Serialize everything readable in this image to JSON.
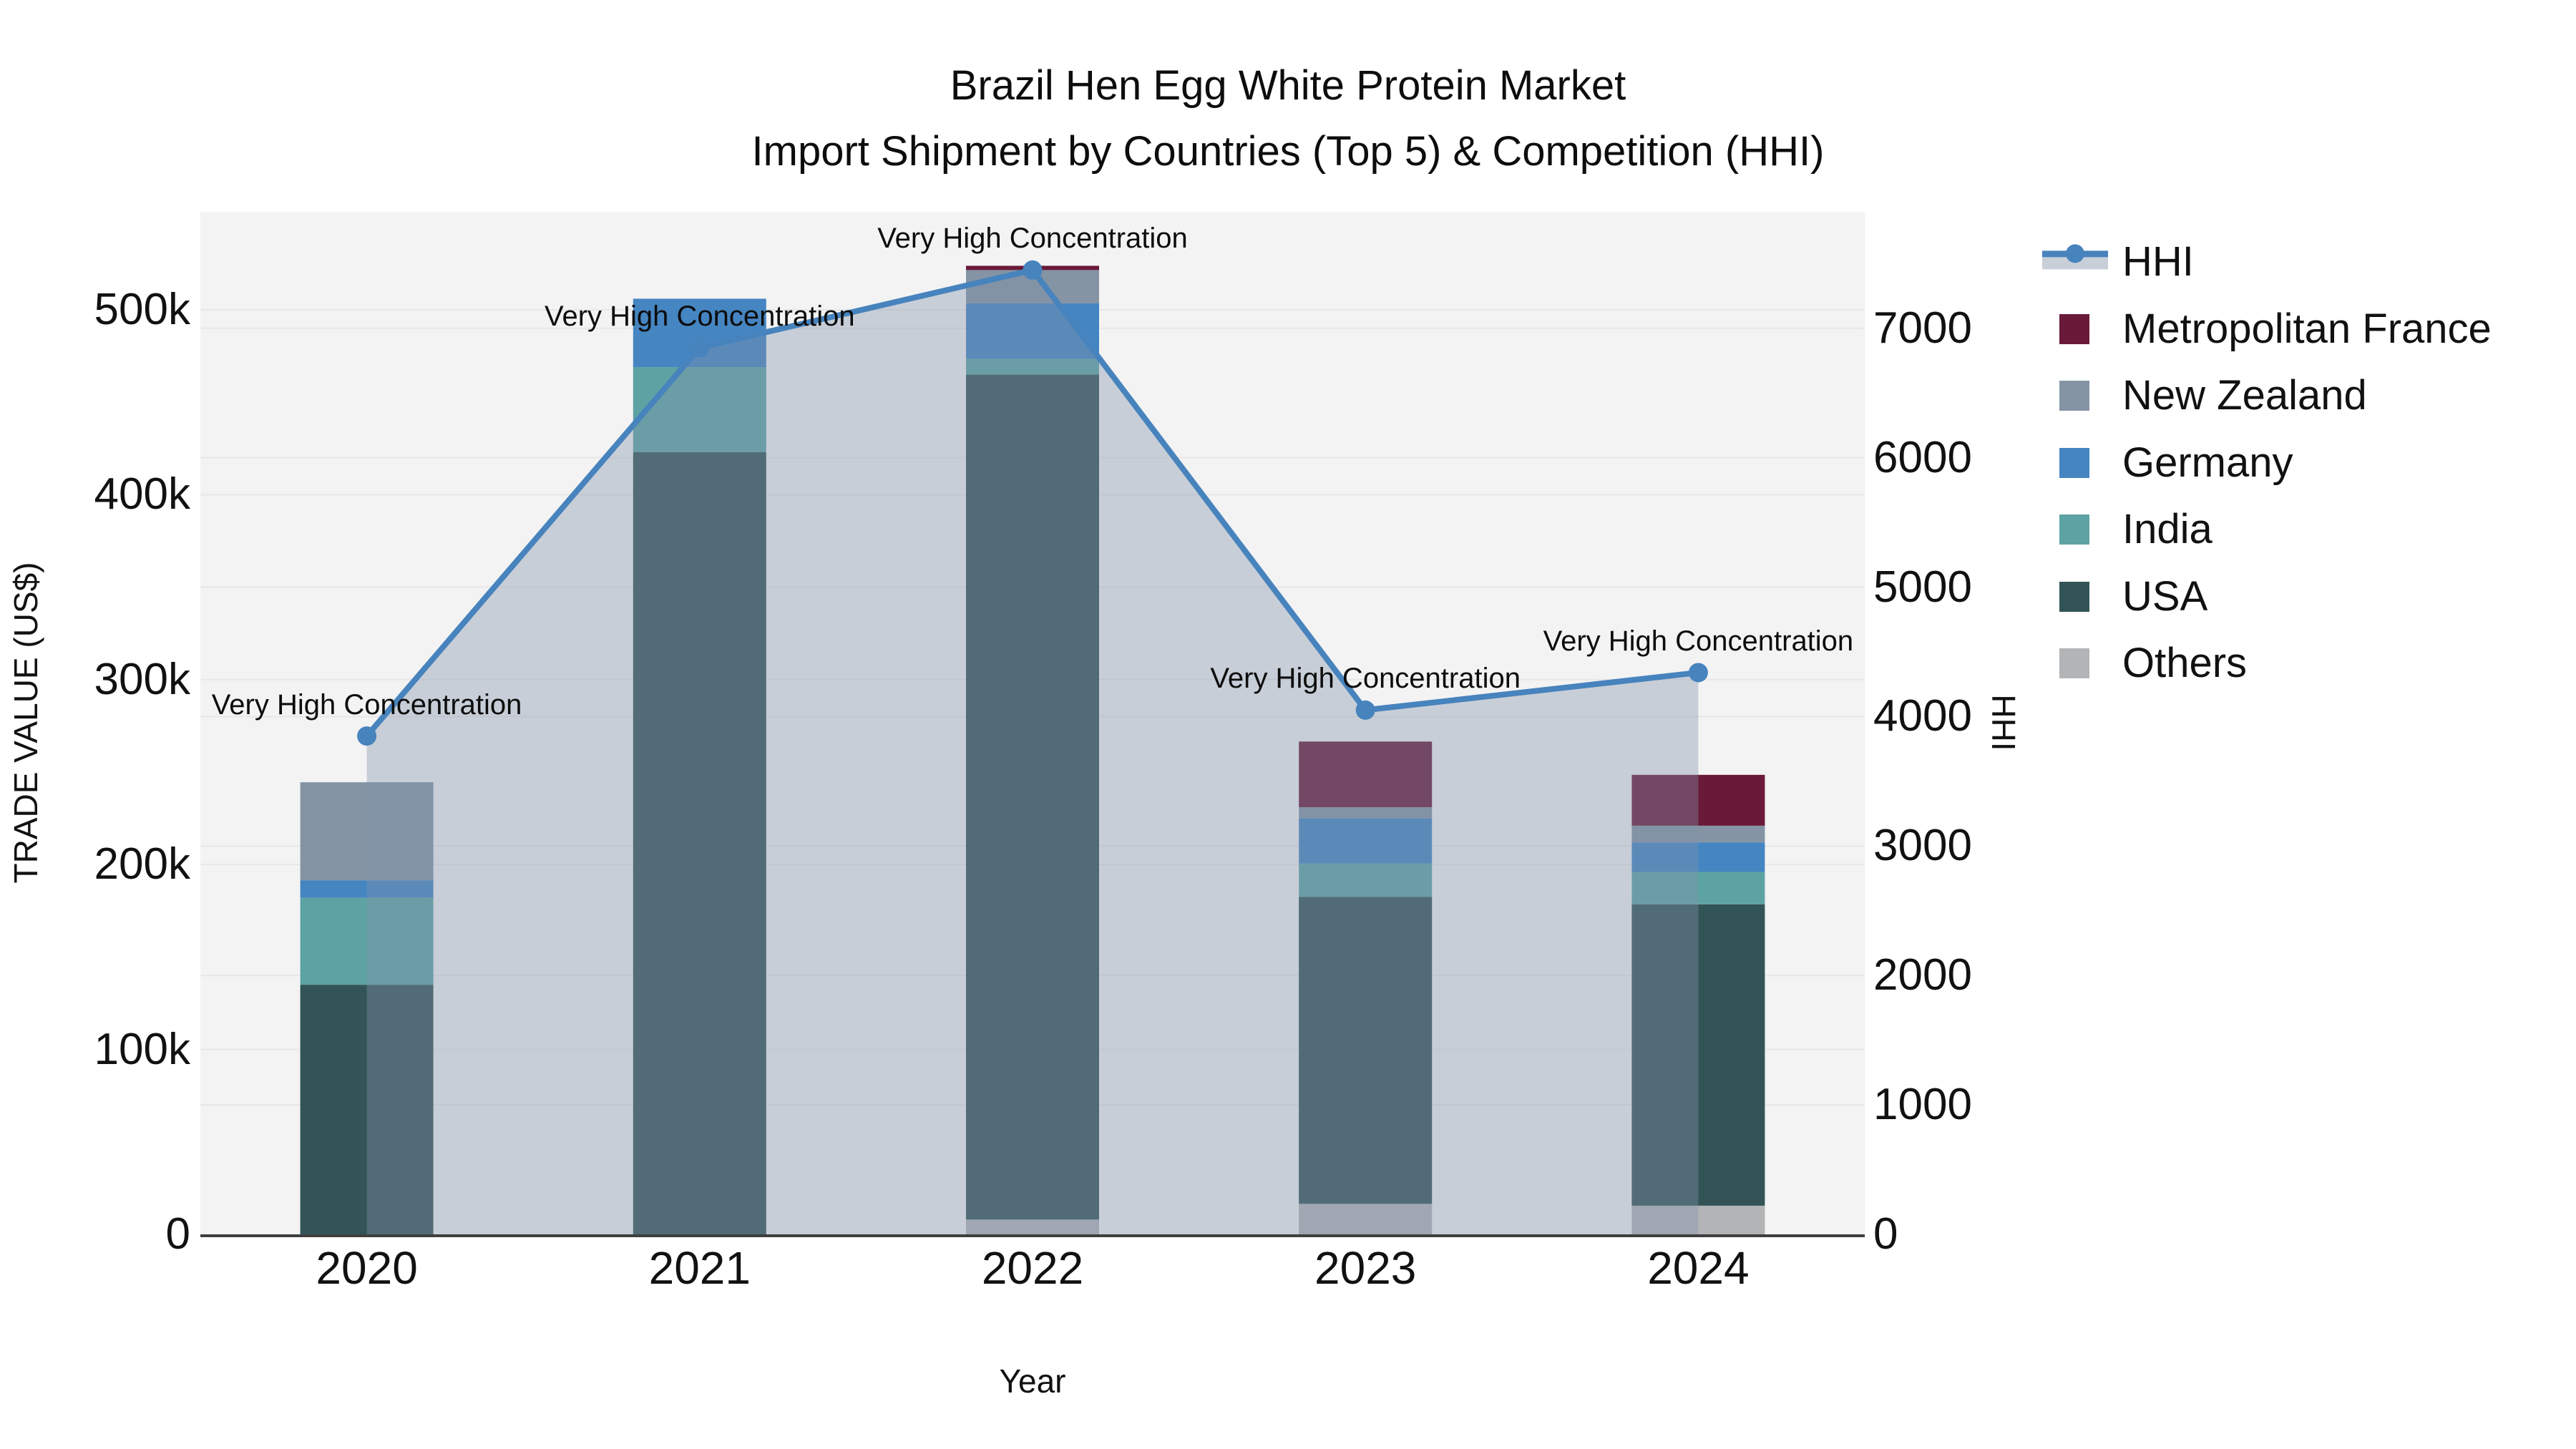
{
  "title": {
    "line1": "Brazil Hen Egg White Protein Market",
    "line2": "Import Shipment by Countries (Top 5) & Competition (HHI)"
  },
  "axes": {
    "x": {
      "title": "Year",
      "tick_labels": [
        "2020",
        "2021",
        "2022",
        "2023",
        "2024"
      ]
    },
    "y_left": {
      "title": "TRADE VALUE (US$)",
      "tick_labels": [
        "0",
        "100k",
        "200k",
        "300k",
        "400k",
        "500k"
      ],
      "tick_values": [
        0,
        100000,
        200000,
        300000,
        400000,
        500000
      ],
      "range": [
        0,
        553000
      ]
    },
    "y_right": {
      "title": "HHI",
      "tick_labels": [
        "0",
        "1000",
        "2000",
        "3000",
        "4000",
        "5000",
        "6000",
        "7000"
      ],
      "tick_values": [
        0,
        1000,
        2000,
        3000,
        4000,
        5000,
        6000,
        7000
      ],
      "range": [
        0,
        7900
      ]
    }
  },
  "legend": {
    "items": [
      {
        "label": "HHI",
        "type": "line",
        "color": "#4783bd"
      },
      {
        "label": "Metropolitan France",
        "type": "swatch",
        "color": "#6a1a39"
      },
      {
        "label": "New Zealand",
        "type": "swatch",
        "color": "#8494a4"
      },
      {
        "label": "Germany",
        "type": "swatch",
        "color": "#4585c1"
      },
      {
        "label": "India",
        "type": "swatch",
        "color": "#5da3a3"
      },
      {
        "label": "USA",
        "type": "swatch",
        "color": "#335456"
      },
      {
        "label": "Others",
        "type": "swatch",
        "color": "#b2b4b6"
      }
    ]
  },
  "chart_data": {
    "type": "bar",
    "stacked": true,
    "title": "Brazil Hen Egg White Protein Market — Import Shipment by Countries (Top 5) & Competition (HHI)",
    "xlabel": "Year",
    "ylabel_left": "TRADE VALUE (US$)",
    "ylabel_right": "HHI",
    "ylim_left": [
      0,
      553000
    ],
    "ylim_right": [
      0,
      7900
    ],
    "grid": true,
    "legend_position": "right",
    "plot_bg": "#f3f3f3",
    "grid_color": "#e7e7e7",
    "axis_line_color": "#3f3f3f",
    "categories": [
      "2020",
      "2021",
      "2022",
      "2023",
      "2024"
    ],
    "series": [
      {
        "name": "Others",
        "color": "#b2b4b6",
        "values": [
          0,
          0,
          8000,
          16500,
          15500
        ]
      },
      {
        "name": "USA",
        "color": "#335456",
        "values": [
          135000,
          423000,
          457000,
          166000,
          163000
        ]
      },
      {
        "name": "India",
        "color": "#5da3a3",
        "values": [
          47000,
          46000,
          8500,
          18000,
          17500
        ]
      },
      {
        "name": "Germany",
        "color": "#4585c1",
        "values": [
          9500,
          37000,
          30000,
          24500,
          16000
        ]
      },
      {
        "name": "New Zealand",
        "color": "#8494a4",
        "values": [
          53000,
          0,
          18000,
          6000,
          9000
        ]
      },
      {
        "name": "Metropolitan France",
        "color": "#6a1a39",
        "values": [
          0,
          0,
          2300,
          35500,
          27500
        ]
      }
    ],
    "line_series": {
      "name": "HHI",
      "axis": "right",
      "color": "#4783bd",
      "area_fill": "rgba(132,148,170,0.38)",
      "values": [
        3850,
        6850,
        7450,
        4050,
        4340
      ],
      "annotations": [
        "Very High Concentration",
        "Very High Concentration",
        "Very High Concentration",
        "Very High Concentration",
        "Very High Concentration"
      ]
    }
  }
}
